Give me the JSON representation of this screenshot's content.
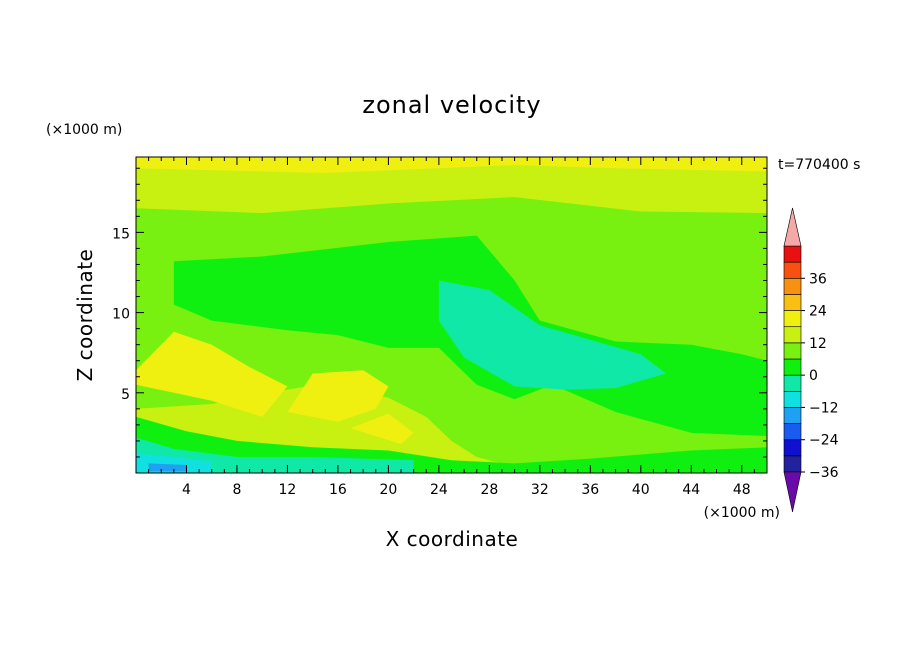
{
  "chart_data": {
    "type": "heatmap",
    "title": "zonal velocity",
    "xlabel": "X coordinate",
    "ylabel": "Z coordinate",
    "x_unit": "(×1000 m)",
    "y_unit": "(×1000 m)",
    "time_label": "t=770400 s",
    "xlim": [
      0,
      50
    ],
    "ylim": [
      0,
      19.7
    ],
    "x_ticks": [
      4,
      8,
      12,
      16,
      20,
      24,
      28,
      32,
      36,
      40,
      44,
      48
    ],
    "y_ticks": [
      5,
      10,
      15
    ],
    "colorbar": {
      "ticks": [
        36,
        24,
        12,
        0,
        -12,
        -24,
        -36
      ],
      "levels": [
        -42,
        -36,
        -30,
        -24,
        -18,
        -12,
        -6,
        0,
        6,
        12,
        18,
        24,
        30,
        36,
        42
      ],
      "colors": [
        "#6a0aa8",
        "#22229e",
        "#1010d0",
        "#1a5cf0",
        "#1fa0f0",
        "#10e0e0",
        "#10e8a8",
        "#10f010",
        "#78f010",
        "#c8f010",
        "#f0f010",
        "#f8c010",
        "#f89010",
        "#f85010",
        "#e81010",
        "#f4a8a8"
      ],
      "extend": "both"
    },
    "layers": [
      {
        "value": 3,
        "points": [
          [
            0,
            0
          ],
          [
            50,
            0
          ],
          [
            50,
            19.7
          ],
          [
            0,
            19.7
          ]
        ]
      },
      {
        "value": 9,
        "points": [
          [
            0,
            16.5
          ],
          [
            10,
            16.2
          ],
          [
            20,
            16.8
          ],
          [
            30,
            17.2
          ],
          [
            40,
            16.3
          ],
          [
            50,
            16.2
          ],
          [
            50,
            19.7
          ],
          [
            0,
            19.7
          ]
        ]
      },
      {
        "value": 14,
        "points": [
          [
            0,
            19.0
          ],
          [
            15,
            18.7
          ],
          [
            30,
            19.2
          ],
          [
            38,
            19.0
          ],
          [
            50,
            18.8
          ],
          [
            50,
            19.7
          ],
          [
            0,
            19.7
          ]
        ]
      },
      {
        "value": 9,
        "points": [
          [
            0,
            4
          ],
          [
            6,
            4.3
          ],
          [
            12,
            5.2
          ],
          [
            15,
            5.6
          ],
          [
            20,
            4.7
          ],
          [
            23,
            3.5
          ],
          [
            25,
            2.0
          ],
          [
            27,
            1.0
          ],
          [
            29,
            0.6
          ],
          [
            26,
            0.1
          ],
          [
            20,
            0.3
          ],
          [
            10,
            0.8
          ],
          [
            0,
            1.6
          ]
        ]
      },
      {
        "value": 14,
        "points": [
          [
            0,
            6.4
          ],
          [
            3,
            8.8
          ],
          [
            6,
            8.0
          ],
          [
            9,
            6.6
          ],
          [
            12,
            5.4
          ],
          [
            10,
            3.5
          ],
          [
            6,
            4.5
          ],
          [
            3,
            5.0
          ],
          [
            0,
            5.5
          ]
        ]
      },
      {
        "value": 14,
        "points": [
          [
            12,
            3.8
          ],
          [
            14,
            6.2
          ],
          [
            18,
            6.4
          ],
          [
            20,
            5.4
          ],
          [
            19,
            4.0
          ],
          [
            16,
            3.2
          ]
        ]
      },
      {
        "value": 14,
        "points": [
          [
            17,
            2.8
          ],
          [
            20,
            3.7
          ],
          [
            22,
            2.5
          ],
          [
            21,
            1.8
          ]
        ]
      },
      {
        "value": -3,
        "points": [
          [
            3,
            13.2
          ],
          [
            10,
            13.5
          ],
          [
            20,
            14.4
          ],
          [
            27,
            14.8
          ],
          [
            30,
            12.0
          ],
          [
            32,
            9.5
          ],
          [
            38,
            8.2
          ],
          [
            44,
            8.0
          ],
          [
            48,
            7.4
          ],
          [
            50,
            7.0
          ],
          [
            50,
            2.3
          ],
          [
            44,
            2.5
          ],
          [
            38,
            3.8
          ],
          [
            33,
            5.5
          ],
          [
            30,
            4.6
          ],
          [
            27,
            5.5
          ],
          [
            24,
            7.8
          ],
          [
            20,
            7.8
          ],
          [
            16,
            8.6
          ],
          [
            12,
            8.9
          ],
          [
            6,
            9.5
          ],
          [
            3,
            10.5
          ]
        ]
      },
      {
        "value": -9,
        "points": [
          [
            24,
            12.0
          ],
          [
            28,
            11.4
          ],
          [
            32,
            9.2
          ],
          [
            40,
            7.4
          ],
          [
            42,
            6.2
          ],
          [
            38,
            5.3
          ],
          [
            34,
            5.2
          ],
          [
            30,
            5.4
          ],
          [
            26,
            7.2
          ],
          [
            24,
            9.5
          ]
        ]
      },
      {
        "value": -3,
        "points": [
          [
            0,
            0
          ],
          [
            50,
            0
          ],
          [
            50,
            1.6
          ],
          [
            44,
            1.4
          ],
          [
            36,
            0.9
          ],
          [
            30,
            0.6
          ],
          [
            25,
            0.8
          ],
          [
            20,
            1.4
          ],
          [
            14,
            1.6
          ],
          [
            8,
            2.0
          ],
          [
            4,
            2.6
          ],
          [
            0,
            3.5
          ]
        ]
      },
      {
        "value": -9,
        "points": [
          [
            0,
            0
          ],
          [
            22,
            0
          ],
          [
            22,
            0.8
          ],
          [
            14,
            1.0
          ],
          [
            8,
            1.0
          ],
          [
            3,
            1.5
          ],
          [
            0,
            2.2
          ]
        ]
      },
      {
        "value": -15,
        "points": [
          [
            0,
            0
          ],
          [
            6,
            0
          ],
          [
            6,
            0.7
          ],
          [
            3,
            1.0
          ],
          [
            0,
            1.2
          ]
        ]
      },
      {
        "value": -21,
        "points": [
          [
            1,
            0.1
          ],
          [
            4,
            0.1
          ],
          [
            4,
            0.5
          ],
          [
            1,
            0.6
          ]
        ]
      }
    ]
  }
}
